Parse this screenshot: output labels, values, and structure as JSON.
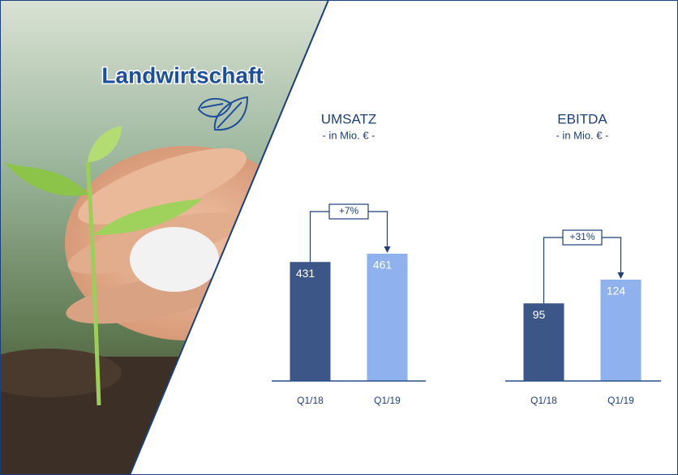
{
  "header": {
    "title": "Landwirtschaft"
  },
  "chart_data": [
    {
      "type": "bar",
      "title": "UMSATZ",
      "subtitle": "- in Mio. € -",
      "categories": [
        "Q1/18",
        "Q1/19"
      ],
      "values": [
        431,
        461
      ],
      "colors": [
        "#3b5687",
        "#8fb2ee"
      ],
      "annotation": "+7%"
    },
    {
      "type": "bar",
      "title": "EBITDA",
      "subtitle": "- in Mio. € -",
      "categories": [
        "Q1/18",
        "Q1/19"
      ],
      "values": [
        95,
        124
      ],
      "colors": [
        "#3b5687",
        "#8fb2ee"
      ],
      "annotation": "+31%"
    }
  ]
}
